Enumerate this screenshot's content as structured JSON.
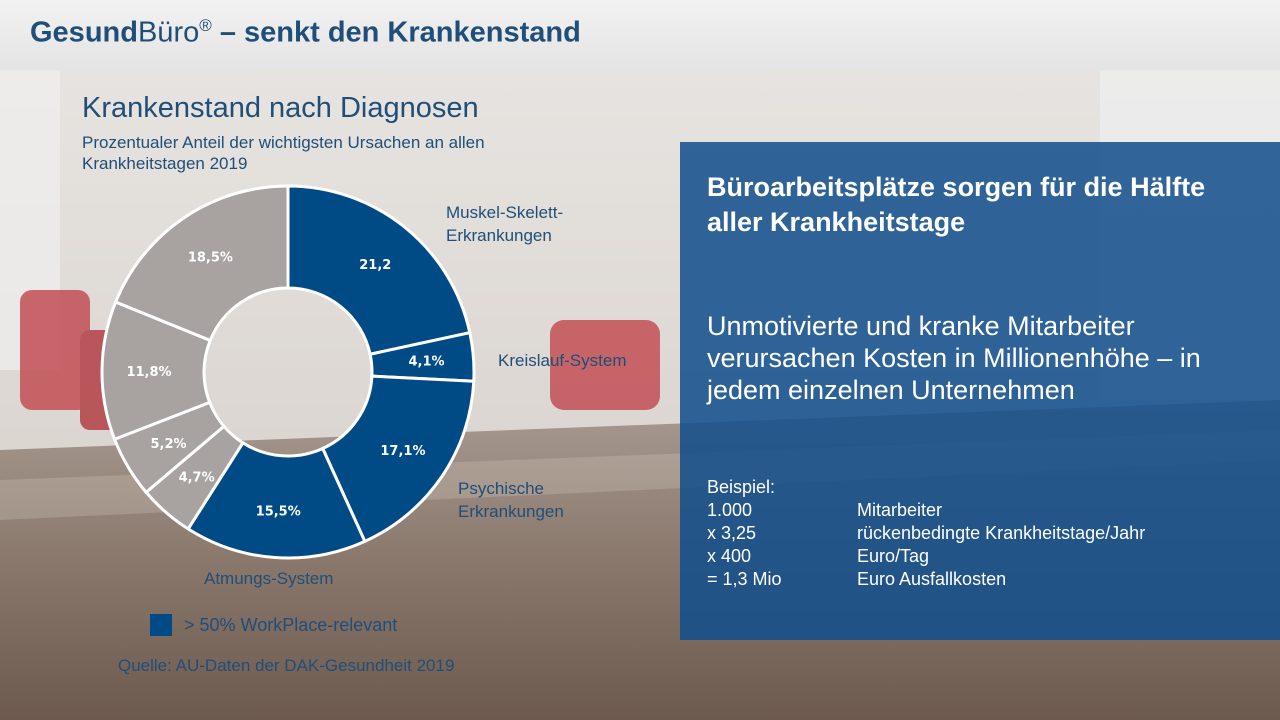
{
  "header": {
    "title_bold": "Gesund",
    "title_light": "Büro",
    "registered": "®",
    "title_rest": " – senkt den Krankenstand"
  },
  "chart_data": {
    "type": "donut",
    "title": "Krankenstand nach Diagnosen",
    "subtitle": "Prozentualer Anteil der wichtigsten Ursachen an allen Krankheitstagen 2019",
    "unit": "%",
    "slices": [
      {
        "name": "Muskel-Skelett-Erkrankungen",
        "value": 21.2,
        "label": "21,2",
        "workplace_relevant": true,
        "color": "#004a86"
      },
      {
        "name": "Kreislauf-System",
        "value": 4.1,
        "label": "4,1%",
        "workplace_relevant": true,
        "color": "#004a86"
      },
      {
        "name": "Psychische Erkrankungen",
        "value": 17.1,
        "label": "17,1%",
        "workplace_relevant": true,
        "color": "#004a86"
      },
      {
        "name": "Atmungs-System",
        "value": 15.5,
        "label": "15,5%",
        "workplace_relevant": true,
        "color": "#004a86"
      },
      {
        "name": "",
        "value": 4.7,
        "label": "4,7%",
        "workplace_relevant": false,
        "color": "#a8a2a0"
      },
      {
        "name": "",
        "value": 5.2,
        "label": "5,2%",
        "workplace_relevant": false,
        "color": "#a8a2a0"
      },
      {
        "name": "",
        "value": 11.8,
        "label": "11,8%",
        "workplace_relevant": false,
        "color": "#a8a2a0"
      },
      {
        "name": "",
        "value": 18.5,
        "label": "18,5%",
        "workplace_relevant": false,
        "color": "#a8a2a0"
      }
    ],
    "category_labels": [
      {
        "lines": [
          "Muskel-Skelett-",
          "Erkrankungen"
        ]
      },
      {
        "lines": [
          "Kreislauf-System"
        ]
      },
      {
        "lines": [
          "Psychische",
          "Erkrankungen"
        ]
      },
      {
        "lines": [
          "Atmungs-System"
        ]
      }
    ],
    "legend": [
      {
        "label": "> 50% WorkPlace-relevant",
        "color": "#004a86"
      }
    ],
    "source": "Quelle: AU-Daten der DAK-Gesundheit 2019"
  },
  "panel": {
    "headline": "Büroarbeitsplätze sorgen für die Hälfte aller Krankheitstage",
    "message": "Unmotivierte und kranke Mitarbeiter verursachen Kosten in Millionenhöhe – in jedem einzelnen Unternehmen",
    "example_title": "Beispiel:",
    "example_rows": [
      {
        "num": "1.000",
        "text": "Mitarbeiter"
      },
      {
        "num": "x 3,25",
        "text": "rückenbedingte  Krankheitstage/Jahr"
      },
      {
        "num": "x 400",
        "text": "Euro/Tag"
      },
      {
        "num": "= 1,3 Mio",
        "text": "Euro Ausfallkosten"
      }
    ]
  }
}
